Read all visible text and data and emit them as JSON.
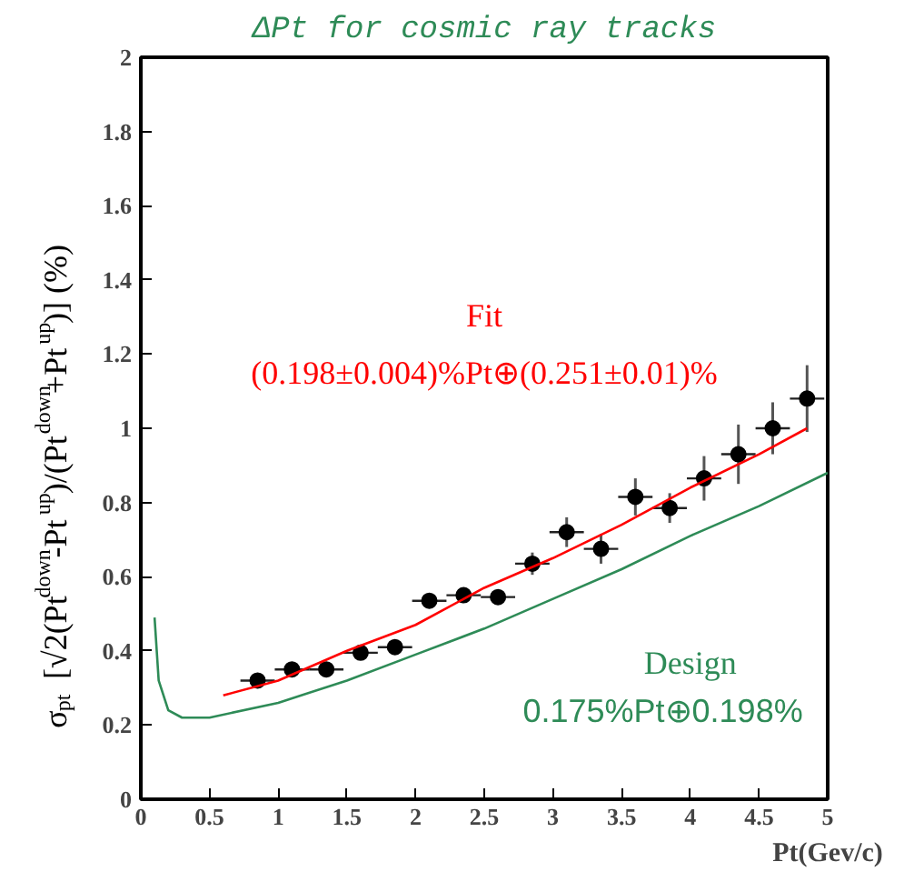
{
  "chart_data": {
    "type": "scatter",
    "title": "ΔPt for cosmic ray tracks",
    "xlabel": "Pt(Gev/c)",
    "ylabel": "σ$_{pt}$ [√2(Pt$^{down}$-Pt$^{up}$)/(Pt$^{down}$+Pt$^{up}$)]  (%)",
    "x": [
      0.85,
      1.1,
      1.35,
      1.6,
      1.85,
      2.1,
      2.35,
      2.6,
      2.85,
      3.1,
      3.35,
      3.6,
      3.85,
      4.1,
      4.35,
      4.6,
      4.85
    ],
    "series": [
      {
        "type": "scatter",
        "marker": "circle",
        "color": "#000000",
        "values": [
          0.32,
          0.35,
          0.35,
          0.395,
          0.41,
          0.535,
          0.55,
          0.545,
          0.635,
          0.72,
          0.675,
          0.815,
          0.785,
          0.865,
          0.93,
          1.0,
          1.08
        ],
        "errors": [
          0.02,
          0.02,
          0.02,
          0.02,
          0.02,
          0.02,
          0.02,
          0.02,
          0.03,
          0.04,
          0.04,
          0.05,
          0.04,
          0.06,
          0.08,
          0.07,
          0.09
        ],
        "xerrors": [
          0.125,
          0.125,
          0.125,
          0.125,
          0.125,
          0.125,
          0.125,
          0.125,
          0.125,
          0.125,
          0.125,
          0.125,
          0.125,
          0.125,
          0.125,
          0.125,
          0.125
        ]
      },
      {
        "type": "line",
        "marker": "none",
        "color": "#ff0000",
        "x": [
          0.6,
          1.0,
          1.5,
          2.0,
          2.5,
          3.0,
          3.5,
          4.0,
          4.5,
          4.85
        ],
        "values": [
          0.28,
          0.32,
          0.4,
          0.47,
          0.57,
          0.65,
          0.74,
          0.84,
          0.93,
          1.0
        ]
      },
      {
        "type": "line",
        "marker": "none",
        "color": "#2e8b57",
        "x": [
          0.1,
          0.13,
          0.2,
          0.3,
          0.5,
          1.0,
          1.5,
          2.0,
          2.5,
          3.0,
          3.5,
          4.0,
          4.5,
          5.0
        ],
        "values": [
          0.49,
          0.32,
          0.24,
          0.22,
          0.22,
          0.26,
          0.32,
          0.39,
          0.46,
          0.54,
          0.62,
          0.71,
          0.79,
          0.88
        ]
      }
    ],
    "annotations": [
      "Fit",
      "(0.198±0.004)%Pt⊕(0.251±0.01)%",
      "Design",
      "0.175%Pt⊕0.198%"
    ],
    "xlim": [
      0,
      5
    ],
    "ylim": [
      0,
      2
    ],
    "xticks": [
      0,
      0.5,
      1,
      1.5,
      2,
      2.5,
      3,
      3.5,
      4,
      4.5,
      5
    ],
    "yticks": [
      0,
      0.2,
      0.4,
      0.6,
      0.8,
      1,
      1.2,
      1.4,
      1.6,
      1.8,
      2
    ],
    "grid": false
  }
}
